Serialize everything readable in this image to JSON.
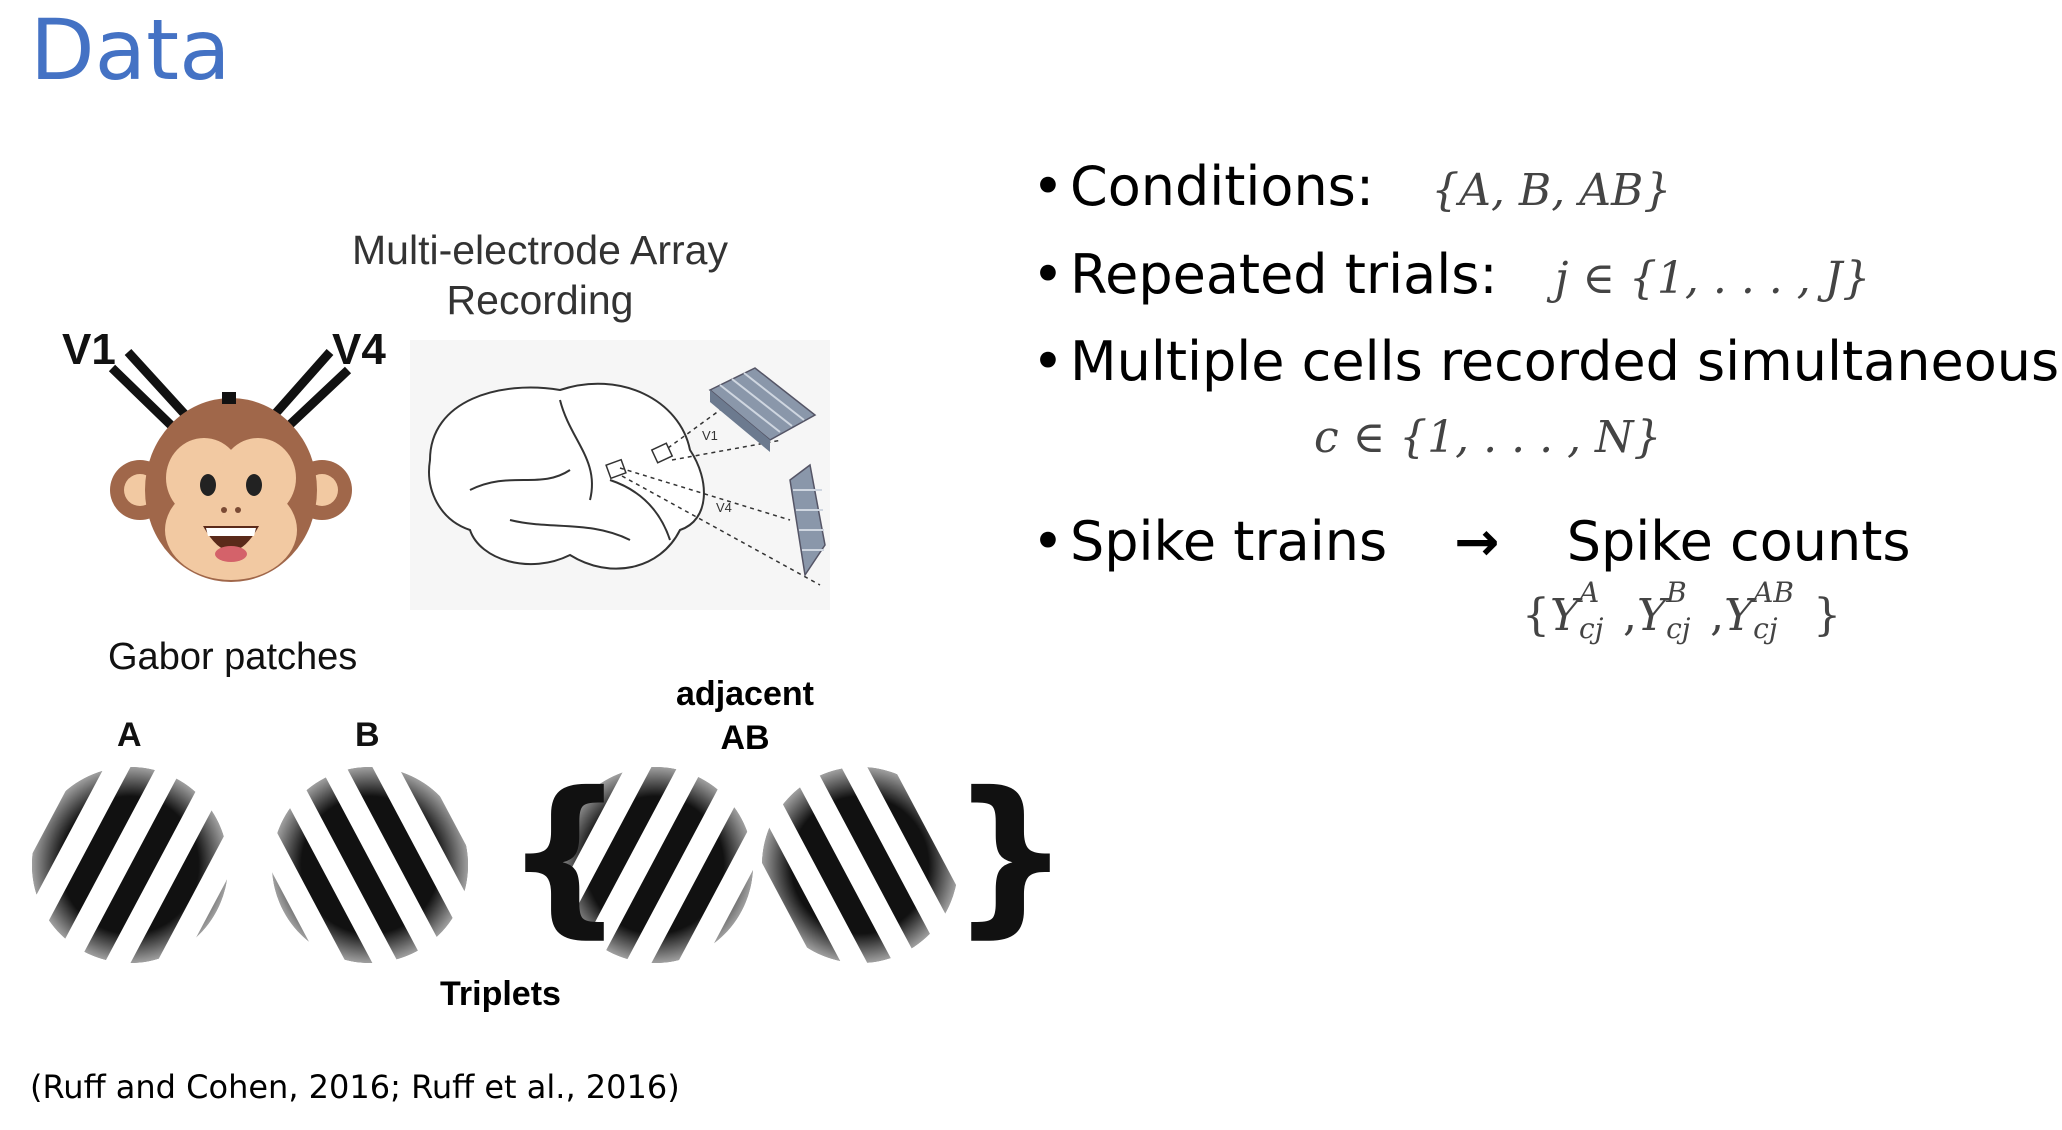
{
  "slide": {
    "title": "Data",
    "citation": "(Ruff and Cohen, 2016; Ruff et al., 2016)"
  },
  "figure": {
    "mea_title_line1": "Multi-electrode Array",
    "mea_title_line2": "Recording",
    "label_v1": "V1",
    "label_v4": "V4",
    "brain_label_v1": "V1",
    "brain_label_v4": "V4",
    "gabor_title": "Gabor patches",
    "patch_a": "A",
    "patch_b": "B",
    "adjacent_line1": "adjacent",
    "adjacent_line2": "AB",
    "triplets": "Triplets",
    "brace_open": "{",
    "brace_close": "}",
    "monkey_icon": "monkey-face-icon",
    "brain_icon": "brain-outline-icon",
    "electrode_icon": "electrode-array-icon"
  },
  "bullets": {
    "b1_label": "Conditions:",
    "b1_math": "{A, B, AB}",
    "b2_label": "Repeated trials:",
    "b2_math_pre": "j ∈ {1, . . . , J}",
    "b3_label": "Multiple cells recorded simultaneously:",
    "b3_math": "c ∈ {1, . . . , N}",
    "b4_left": "Spike trains",
    "b4_arrow": "→",
    "b4_right": "Spike counts",
    "b4_math_open": "{",
    "b4_Y": "Y",
    "b4_sub": "cj",
    "b4_supA": "A",
    "b4_supB": "B",
    "b4_supAB": "AB",
    "b4_comma": ",",
    "b4_math_close": "}",
    "dot": "•"
  },
  "colors": {
    "title": "#4472c4",
    "text": "#000000",
    "math": "#444444"
  }
}
